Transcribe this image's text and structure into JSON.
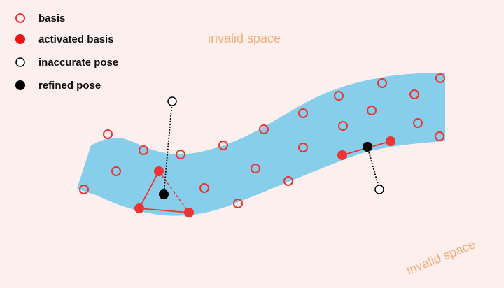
{
  "colors": {
    "background": "#fdefee",
    "valid_region": "#87ceeb",
    "basis": "#ee3333",
    "refined_pose": "#000000",
    "invalid_space_text": "#f2ad78"
  },
  "legend": {
    "basis": "basis",
    "activated_basis": "activated basis",
    "inaccurate_pose": "inaccurate pose",
    "refined_pose": "refined pose"
  },
  "labels": {
    "invalid_space_top": "invalid space",
    "invalid_space_bottom": "invalid space"
  }
}
